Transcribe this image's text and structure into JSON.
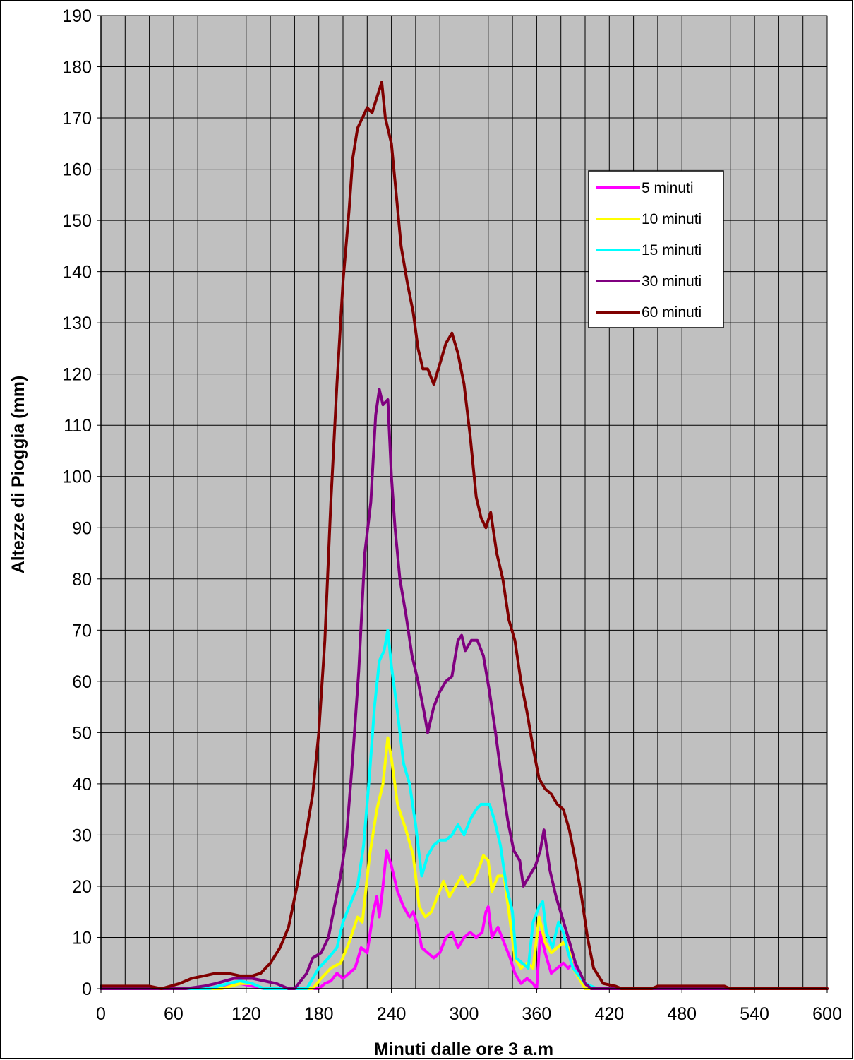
{
  "chart_data": {
    "type": "line",
    "title": "",
    "xlabel": "Minuti dalle ore 3 a.m",
    "ylabel": "Altezze di Pioggia (mm)",
    "xlim": [
      0,
      600
    ],
    "ylim": [
      0,
      190
    ],
    "x_ticks": [
      0,
      60,
      120,
      180,
      240,
      300,
      360,
      420,
      480,
      540,
      600
    ],
    "y_ticks": [
      0,
      10,
      20,
      30,
      40,
      50,
      60,
      70,
      80,
      90,
      100,
      110,
      120,
      130,
      140,
      150,
      160,
      170,
      180,
      190
    ],
    "grid": true,
    "legend_position": "right",
    "series": [
      {
        "name": "5 minuti",
        "color": "#ff00ff",
        "points": [
          [
            0,
            0
          ],
          [
            90,
            0
          ],
          [
            100,
            0.5
          ],
          [
            115,
            1
          ],
          [
            125,
            0.5
          ],
          [
            135,
            0
          ],
          [
            180,
            0
          ],
          [
            185,
            1
          ],
          [
            190,
            1.5
          ],
          [
            195,
            3
          ],
          [
            200,
            2
          ],
          [
            205,
            3
          ],
          [
            210,
            4
          ],
          [
            215,
            8
          ],
          [
            220,
            7
          ],
          [
            225,
            15
          ],
          [
            228,
            18
          ],
          [
            230,
            14
          ],
          [
            233,
            20
          ],
          [
            236,
            27
          ],
          [
            240,
            24
          ],
          [
            245,
            19
          ],
          [
            250,
            16
          ],
          [
            255,
            14
          ],
          [
            258,
            15
          ],
          [
            262,
            12
          ],
          [
            265,
            8
          ],
          [
            270,
            7
          ],
          [
            275,
            6
          ],
          [
            280,
            7
          ],
          [
            285,
            10
          ],
          [
            290,
            11
          ],
          [
            295,
            8
          ],
          [
            300,
            10
          ],
          [
            305,
            11
          ],
          [
            310,
            10
          ],
          [
            315,
            11
          ],
          [
            318,
            15
          ],
          [
            320,
            16
          ],
          [
            323,
            10
          ],
          [
            328,
            12
          ],
          [
            333,
            9
          ],
          [
            338,
            6
          ],
          [
            342,
            3
          ],
          [
            347,
            1
          ],
          [
            352,
            2
          ],
          [
            357,
            1
          ],
          [
            360,
            0
          ],
          [
            363,
            11
          ],
          [
            367,
            7
          ],
          [
            372,
            3
          ],
          [
            377,
            4
          ],
          [
            382,
            5
          ],
          [
            386,
            4
          ],
          [
            390,
            5
          ],
          [
            400,
            0
          ],
          [
            600,
            0
          ]
        ]
      },
      {
        "name": "10 minuti",
        "color": "#ffff00",
        "points": [
          [
            0,
            0
          ],
          [
            100,
            0
          ],
          [
            115,
            1
          ],
          [
            125,
            1
          ],
          [
            135,
            0
          ],
          [
            175,
            0
          ],
          [
            182,
            2
          ],
          [
            190,
            4
          ],
          [
            198,
            5
          ],
          [
            205,
            9
          ],
          [
            212,
            14
          ],
          [
            216,
            13
          ],
          [
            222,
            26
          ],
          [
            228,
            35
          ],
          [
            233,
            40
          ],
          [
            237,
            49
          ],
          [
            240,
            45
          ],
          [
            245,
            36
          ],
          [
            252,
            31
          ],
          [
            258,
            26
          ],
          [
            263,
            16
          ],
          [
            268,
            14
          ],
          [
            273,
            15
          ],
          [
            278,
            18
          ],
          [
            283,
            21
          ],
          [
            288,
            18
          ],
          [
            293,
            20
          ],
          [
            298,
            22
          ],
          [
            303,
            20
          ],
          [
            308,
            21
          ],
          [
            313,
            24
          ],
          [
            316,
            26
          ],
          [
            320,
            25
          ],
          [
            323,
            19
          ],
          [
            328,
            22
          ],
          [
            333,
            22
          ],
          [
            337,
            15
          ],
          [
            342,
            6
          ],
          [
            347,
            4
          ],
          [
            352,
            5
          ],
          [
            357,
            4
          ],
          [
            362,
            14
          ],
          [
            367,
            9
          ],
          [
            372,
            7
          ],
          [
            377,
            8
          ],
          [
            382,
            9
          ],
          [
            386,
            8
          ],
          [
            390,
            4
          ],
          [
            400,
            0
          ],
          [
            595,
            0
          ],
          [
            600,
            0
          ]
        ]
      },
      {
        "name": "15 minuti",
        "color": "#00ffff",
        "points": [
          [
            0,
            0
          ],
          [
            90,
            0
          ],
          [
            105,
            1
          ],
          [
            115,
            1.5
          ],
          [
            125,
            1
          ],
          [
            135,
            0
          ],
          [
            170,
            0
          ],
          [
            180,
            4
          ],
          [
            188,
            6
          ],
          [
            195,
            8
          ],
          [
            200,
            13
          ],
          [
            205,
            16
          ],
          [
            212,
            20
          ],
          [
            217,
            28
          ],
          [
            222,
            42
          ],
          [
            226,
            55
          ],
          [
            230,
            64
          ],
          [
            234,
            66
          ],
          [
            237,
            70
          ],
          [
            240,
            63
          ],
          [
            245,
            54
          ],
          [
            250,
            44
          ],
          [
            255,
            40
          ],
          [
            260,
            32
          ],
          [
            265,
            22
          ],
          [
            270,
            26
          ],
          [
            275,
            28
          ],
          [
            280,
            29
          ],
          [
            285,
            29
          ],
          [
            290,
            30
          ],
          [
            295,
            32
          ],
          [
            300,
            30
          ],
          [
            305,
            33
          ],
          [
            310,
            35
          ],
          [
            314,
            36
          ],
          [
            318,
            36
          ],
          [
            321,
            36
          ],
          [
            325,
            33
          ],
          [
            330,
            28
          ],
          [
            335,
            20
          ],
          [
            340,
            15
          ],
          [
            343,
            6
          ],
          [
            348,
            5
          ],
          [
            353,
            4
          ],
          [
            357,
            13
          ],
          [
            362,
            16
          ],
          [
            365,
            17
          ],
          [
            368,
            11
          ],
          [
            373,
            8
          ],
          [
            378,
            13
          ],
          [
            382,
            11
          ],
          [
            386,
            7
          ],
          [
            390,
            4
          ],
          [
            400,
            1
          ],
          [
            410,
            0
          ],
          [
            600,
            0
          ]
        ]
      },
      {
        "name": "30 minuti",
        "color": "#800080",
        "points": [
          [
            0,
            0
          ],
          [
            70,
            0
          ],
          [
            85,
            0.5
          ],
          [
            95,
            1
          ],
          [
            110,
            2
          ],
          [
            125,
            2
          ],
          [
            135,
            1.5
          ],
          [
            145,
            1
          ],
          [
            155,
            0
          ],
          [
            160,
            0
          ],
          [
            170,
            3
          ],
          [
            175,
            6
          ],
          [
            182,
            7
          ],
          [
            188,
            10
          ],
          [
            192,
            15
          ],
          [
            198,
            22
          ],
          [
            203,
            30
          ],
          [
            208,
            45
          ],
          [
            213,
            62
          ],
          [
            218,
            85
          ],
          [
            223,
            95
          ],
          [
            227,
            112
          ],
          [
            230,
            117
          ],
          [
            233,
            114
          ],
          [
            237,
            115
          ],
          [
            240,
            100
          ],
          [
            243,
            90
          ],
          [
            247,
            80
          ],
          [
            252,
            73
          ],
          [
            257,
            65
          ],
          [
            262,
            60
          ],
          [
            267,
            54
          ],
          [
            270,
            50
          ],
          [
            275,
            55
          ],
          [
            280,
            58
          ],
          [
            285,
            60
          ],
          [
            290,
            61
          ],
          [
            295,
            68
          ],
          [
            298,
            69
          ],
          [
            301,
            66
          ],
          [
            306,
            68
          ],
          [
            311,
            68
          ],
          [
            316,
            65
          ],
          [
            321,
            58
          ],
          [
            326,
            50
          ],
          [
            331,
            41
          ],
          [
            336,
            33
          ],
          [
            341,
            27
          ],
          [
            346,
            25
          ],
          [
            349,
            20
          ],
          [
            354,
            22
          ],
          [
            359,
            24
          ],
          [
            363,
            27
          ],
          [
            366,
            31
          ],
          [
            371,
            23
          ],
          [
            376,
            18
          ],
          [
            381,
            14
          ],
          [
            386,
            10
          ],
          [
            392,
            5
          ],
          [
            400,
            1
          ],
          [
            405,
            0
          ],
          [
            560,
            0
          ],
          [
            600,
            0
          ]
        ]
      },
      {
        "name": "60 minuti",
        "color": "#800000",
        "points": [
          [
            0,
            0.5
          ],
          [
            40,
            0.5
          ],
          [
            50,
            0
          ],
          [
            65,
            1
          ],
          [
            75,
            2
          ],
          [
            85,
            2.5
          ],
          [
            95,
            3
          ],
          [
            105,
            3
          ],
          [
            115,
            2.5
          ],
          [
            125,
            2.5
          ],
          [
            132,
            3
          ],
          [
            140,
            5
          ],
          [
            148,
            8
          ],
          [
            155,
            12
          ],
          [
            162,
            20
          ],
          [
            168,
            28
          ],
          [
            175,
            38
          ],
          [
            180,
            50
          ],
          [
            185,
            68
          ],
          [
            190,
            95
          ],
          [
            195,
            118
          ],
          [
            200,
            138
          ],
          [
            205,
            152
          ],
          [
            208,
            162
          ],
          [
            212,
            168
          ],
          [
            216,
            170
          ],
          [
            220,
            172
          ],
          [
            224,
            171
          ],
          [
            228,
            174
          ],
          [
            232,
            177
          ],
          [
            235,
            170
          ],
          [
            240,
            165
          ],
          [
            244,
            155
          ],
          [
            248,
            145
          ],
          [
            253,
            138
          ],
          [
            258,
            132
          ],
          [
            262,
            125
          ],
          [
            266,
            121
          ],
          [
            270,
            121
          ],
          [
            275,
            118
          ],
          [
            280,
            122
          ],
          [
            285,
            126
          ],
          [
            290,
            128
          ],
          [
            295,
            124
          ],
          [
            300,
            118
          ],
          [
            305,
            108
          ],
          [
            310,
            96
          ],
          [
            314,
            92
          ],
          [
            318,
            90
          ],
          [
            322,
            93
          ],
          [
            327,
            85
          ],
          [
            332,
            80
          ],
          [
            337,
            72
          ],
          [
            342,
            68
          ],
          [
            347,
            60
          ],
          [
            352,
            54
          ],
          [
            357,
            47
          ],
          [
            362,
            41
          ],
          [
            367,
            39
          ],
          [
            372,
            38
          ],
          [
            377,
            36
          ],
          [
            382,
            35
          ],
          [
            387,
            31
          ],
          [
            392,
            25
          ],
          [
            397,
            18
          ],
          [
            402,
            10
          ],
          [
            407,
            4
          ],
          [
            415,
            1
          ],
          [
            425,
            0.5
          ],
          [
            430,
            0
          ],
          [
            455,
            0
          ],
          [
            460,
            0.5
          ],
          [
            515,
            0.5
          ],
          [
            520,
            0
          ],
          [
            600,
            0
          ]
        ]
      }
    ]
  }
}
